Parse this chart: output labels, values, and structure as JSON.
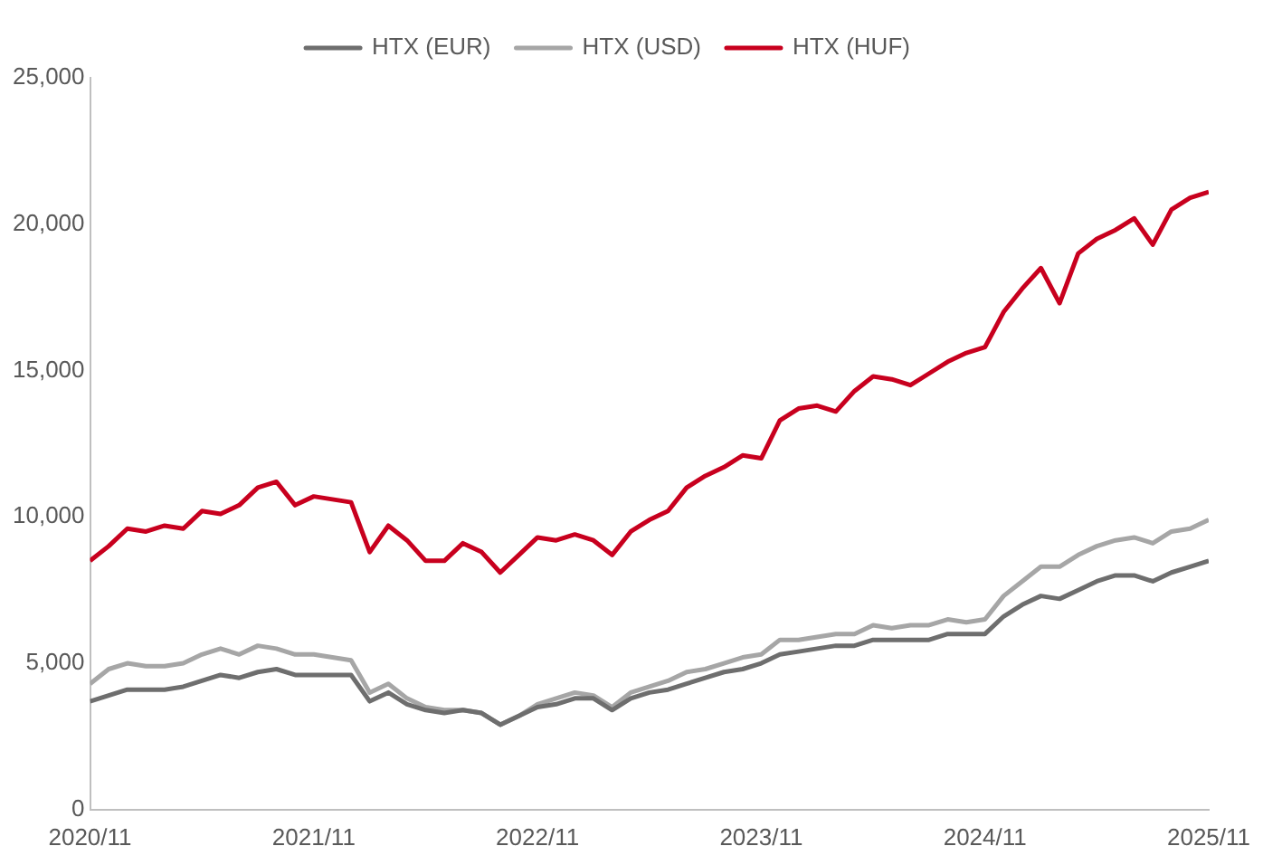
{
  "chart_data": {
    "type": "line",
    "legend": "top",
    "marker": "none",
    "line_style": "solid",
    "grid": false,
    "x": [
      "2020-11",
      "2020-12",
      "2021-01",
      "2021-02",
      "2021-03",
      "2021-04",
      "2021-05",
      "2021-06",
      "2021-07",
      "2021-08",
      "2021-09",
      "2021-10",
      "2021-11",
      "2021-12",
      "2022-01",
      "2022-02",
      "2022-03",
      "2022-04",
      "2022-05",
      "2022-06",
      "2022-07",
      "2022-08",
      "2022-09",
      "2022-10",
      "2022-11",
      "2022-12",
      "2023-01",
      "2023-02",
      "2023-03",
      "2023-04",
      "2023-05",
      "2023-06",
      "2023-07",
      "2023-08",
      "2023-09",
      "2023-10",
      "2023-11",
      "2023-12",
      "2024-01",
      "2024-02",
      "2024-03",
      "2024-04",
      "2024-05",
      "2024-06",
      "2024-07",
      "2024-08",
      "2024-09",
      "2024-10",
      "2024-11",
      "2024-12",
      "2025-01",
      "2025-02",
      "2025-03",
      "2025-04",
      "2025-05",
      "2025-06",
      "2025-07",
      "2025-08",
      "2025-09",
      "2025-10",
      "2025-11"
    ],
    "series": [
      {
        "name": "HTX (EUR)",
        "color": "#6e6e6e",
        "values": [
          3700,
          3900,
          4100,
          4100,
          4100,
          4200,
          4400,
          4600,
          4500,
          4700,
          4800,
          4600,
          4600,
          4600,
          4600,
          3700,
          4000,
          3600,
          3400,
          3300,
          3400,
          3300,
          2900,
          3200,
          3500,
          3600,
          3800,
          3800,
          3400,
          3800,
          4000,
          4100,
          4300,
          4500,
          4700,
          4800,
          5000,
          5300,
          5400,
          5500,
          5600,
          5600,
          5800,
          5800,
          5800,
          5800,
          6000,
          6000,
          6000,
          6600,
          7000,
          7300,
          7200,
          7500,
          7800,
          8000,
          8000,
          7800,
          8100,
          8300,
          8500
        ]
      },
      {
        "name": "HTX (USD)",
        "color": "#a6a6a6",
        "values": [
          4300,
          4800,
          5000,
          4900,
          4900,
          5000,
          5300,
          5500,
          5300,
          5600,
          5500,
          5300,
          5300,
          5200,
          5100,
          4000,
          4300,
          3800,
          3500,
          3400,
          3400,
          3300,
          2900,
          3200,
          3600,
          3800,
          4000,
          3900,
          3500,
          4000,
          4200,
          4400,
          4700,
          4800,
          5000,
          5200,
          5300,
          5800,
          5800,
          5900,
          6000,
          6000,
          6300,
          6200,
          6300,
          6300,
          6500,
          6400,
          6500,
          7300,
          7800,
          8300,
          8300,
          8700,
          9000,
          9200,
          9300,
          9100,
          9500,
          9600,
          9900
        ]
      },
      {
        "name": "HTX (HUF)",
        "color": "#c8001e",
        "values": [
          8500,
          9000,
          9600,
          9500,
          9700,
          9600,
          10200,
          10100,
          10400,
          11000,
          11200,
          10400,
          10700,
          10600,
          10500,
          8800,
          9700,
          9200,
          8500,
          8500,
          9100,
          8800,
          8100,
          8700,
          9300,
          9200,
          9400,
          9200,
          8700,
          9500,
          9900,
          10200,
          11000,
          11400,
          11700,
          12100,
          12000,
          13300,
          13700,
          13800,
          13600,
          14300,
          14800,
          14700,
          14500,
          14900,
          15300,
          15600,
          15800,
          17000,
          17800,
          18500,
          17300,
          19000,
          19500,
          19800,
          20200,
          19300,
          20500,
          20900,
          21100
        ]
      }
    ],
    "xlim": [
      "2020-11",
      "2025-11"
    ],
    "xticks": [
      {
        "value": "2020-11",
        "label": "2020/11"
      },
      {
        "value": "2021-11",
        "label": "2021/11"
      },
      {
        "value": "2022-11",
        "label": "2022/11"
      },
      {
        "value": "2023-11",
        "label": "2023/11"
      },
      {
        "value": "2024-11",
        "label": "2024/11"
      },
      {
        "value": "2025-11",
        "label": "2025/11"
      }
    ],
    "ylim": [
      0,
      25000
    ],
    "yticks": [
      {
        "value": 0,
        "label": "0"
      },
      {
        "value": 5000,
        "label": "5,000"
      },
      {
        "value": 10000,
        "label": "10,000"
      },
      {
        "value": 15000,
        "label": "15,000"
      },
      {
        "value": 20000,
        "label": "20,000"
      },
      {
        "value": 25000,
        "label": "25,000"
      }
    ]
  }
}
